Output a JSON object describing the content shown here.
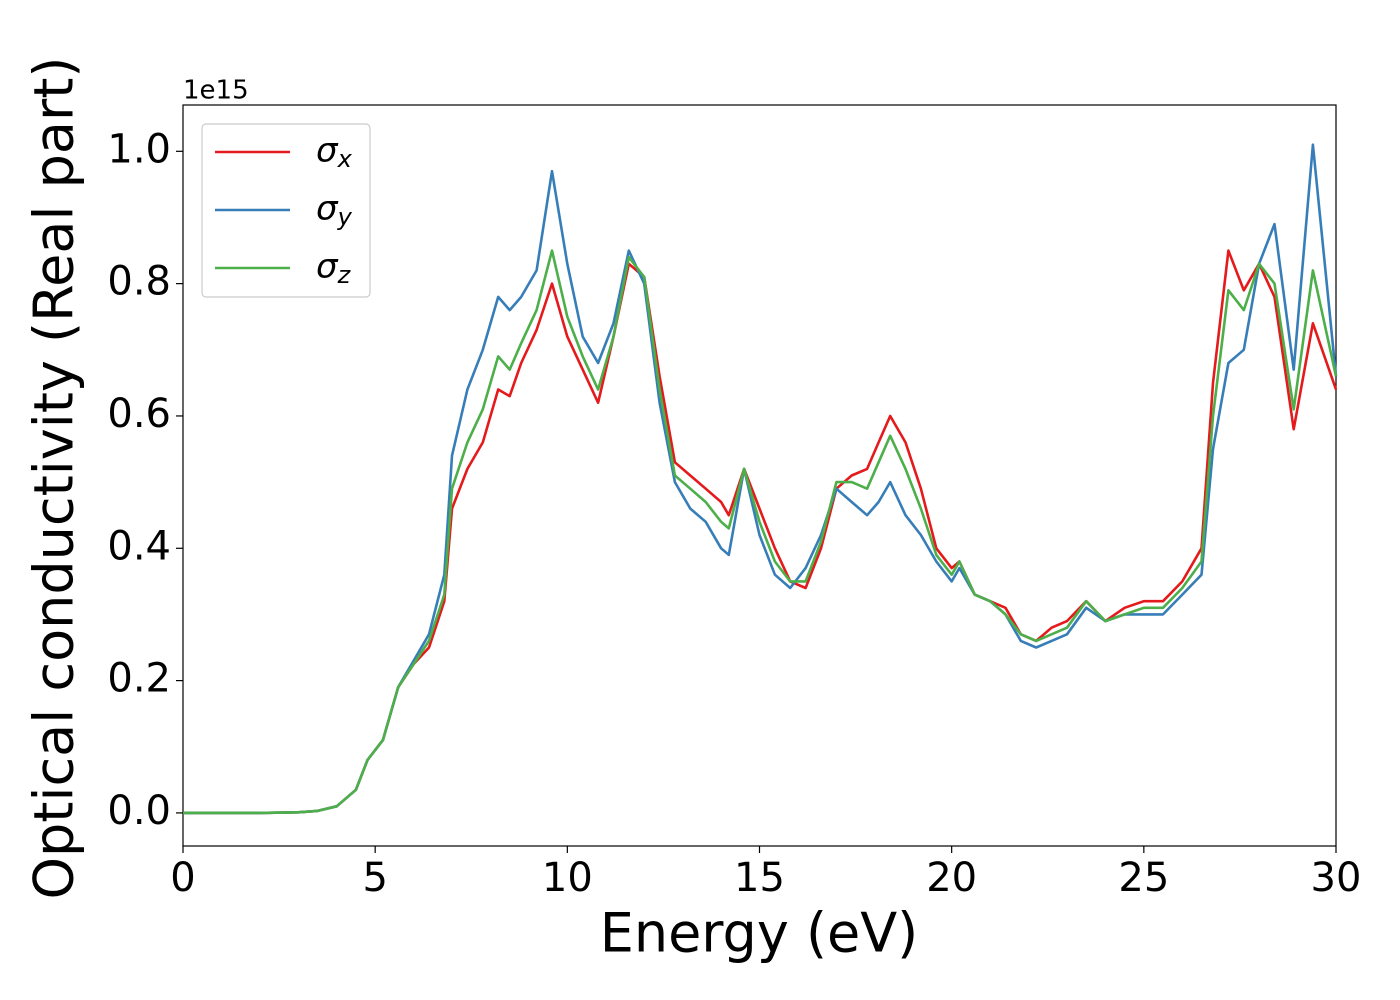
{
  "chart_data": {
    "type": "line",
    "xlabel": "Energy (eV)",
    "ylabel": "Optical conductivity (Real part)",
    "y_offset_label": "1e15",
    "x": [
      0,
      1,
      2,
      3,
      3.5,
      4,
      4.5,
      4.8,
      5.2,
      5.6,
      6,
      6.4,
      6.8,
      7,
      7.4,
      7.8,
      8.2,
      8.5,
      8.8,
      9.2,
      9.6,
      10,
      10.4,
      10.8,
      11.2,
      11.6,
      12,
      12.4,
      12.8,
      13.2,
      13.6,
      14,
      14.2,
      14.6,
      15,
      15.4,
      15.8,
      16.2,
      16.6,
      17,
      17.4,
      17.8,
      18.1,
      18.4,
      18.8,
      19.2,
      19.6,
      20,
      20.2,
      20.6,
      21,
      21.4,
      21.8,
      22.2,
      22.6,
      23,
      23.5,
      24,
      24.5,
      25,
      25.5,
      26,
      26.5,
      26.8,
      27.2,
      27.6,
      28,
      28.4,
      28.9,
      29.4,
      30
    ],
    "series": [
      {
        "name": "σx",
        "color": "#e41a1c",
        "values": [
          0,
          0,
          0,
          0.001,
          0.003,
          0.01,
          0.035,
          0.08,
          0.11,
          0.19,
          0.225,
          0.25,
          0.32,
          0.46,
          0.52,
          0.56,
          0.64,
          0.63,
          0.68,
          0.73,
          0.8,
          0.72,
          0.67,
          0.62,
          0.72,
          0.83,
          0.81,
          0.66,
          0.53,
          0.51,
          0.49,
          0.47,
          0.45,
          0.52,
          0.46,
          0.4,
          0.35,
          0.34,
          0.4,
          0.49,
          0.51,
          0.52,
          0.56,
          0.6,
          0.56,
          0.49,
          0.4,
          0.37,
          0.38,
          0.33,
          0.32,
          0.31,
          0.27,
          0.26,
          0.28,
          0.29,
          0.32,
          0.29,
          0.31,
          0.32,
          0.32,
          0.35,
          0.4,
          0.65,
          0.85,
          0.79,
          0.83,
          0.78,
          0.58,
          0.74,
          0.64
        ]
      },
      {
        "name": "σy",
        "color": "#377eb8",
        "values": [
          0,
          0,
          0,
          0.001,
          0.003,
          0.01,
          0.035,
          0.08,
          0.11,
          0.19,
          0.23,
          0.27,
          0.36,
          0.54,
          0.64,
          0.7,
          0.78,
          0.76,
          0.78,
          0.82,
          0.97,
          0.83,
          0.72,
          0.68,
          0.74,
          0.85,
          0.8,
          0.62,
          0.5,
          0.46,
          0.44,
          0.4,
          0.39,
          0.52,
          0.42,
          0.36,
          0.34,
          0.37,
          0.42,
          0.49,
          0.47,
          0.45,
          0.47,
          0.5,
          0.45,
          0.42,
          0.38,
          0.35,
          0.37,
          0.33,
          0.32,
          0.3,
          0.26,
          0.25,
          0.26,
          0.27,
          0.31,
          0.29,
          0.3,
          0.3,
          0.3,
          0.33,
          0.36,
          0.55,
          0.68,
          0.7,
          0.83,
          0.89,
          0.67,
          1.01,
          0.66
        ]
      },
      {
        "name": "σz",
        "color": "#4daf4a",
        "values": [
          0,
          0,
          0,
          0.001,
          0.003,
          0.01,
          0.035,
          0.08,
          0.11,
          0.19,
          0.225,
          0.26,
          0.33,
          0.49,
          0.56,
          0.61,
          0.69,
          0.67,
          0.71,
          0.76,
          0.85,
          0.75,
          0.69,
          0.64,
          0.72,
          0.84,
          0.81,
          0.64,
          0.51,
          0.49,
          0.47,
          0.44,
          0.43,
          0.52,
          0.44,
          0.38,
          0.35,
          0.35,
          0.41,
          0.5,
          0.5,
          0.49,
          0.53,
          0.57,
          0.52,
          0.46,
          0.39,
          0.36,
          0.38,
          0.33,
          0.32,
          0.3,
          0.27,
          0.26,
          0.27,
          0.28,
          0.32,
          0.29,
          0.3,
          0.31,
          0.31,
          0.34,
          0.38,
          0.6,
          0.79,
          0.76,
          0.83,
          0.8,
          0.61,
          0.82,
          0.66
        ]
      }
    ],
    "xlim": [
      0,
      30
    ],
    "xticks": [
      0,
      5,
      10,
      15,
      20,
      25,
      30
    ],
    "ylim": [
      -0.05,
      1.07
    ],
    "yticks": [
      {
        "value": 0,
        "label": "0.0"
      },
      0.2,
      0.4,
      0.6,
      0.8,
      {
        "value": 1,
        "label": "1.0"
      }
    ],
    "legend": "upper left",
    "grid": false
  }
}
